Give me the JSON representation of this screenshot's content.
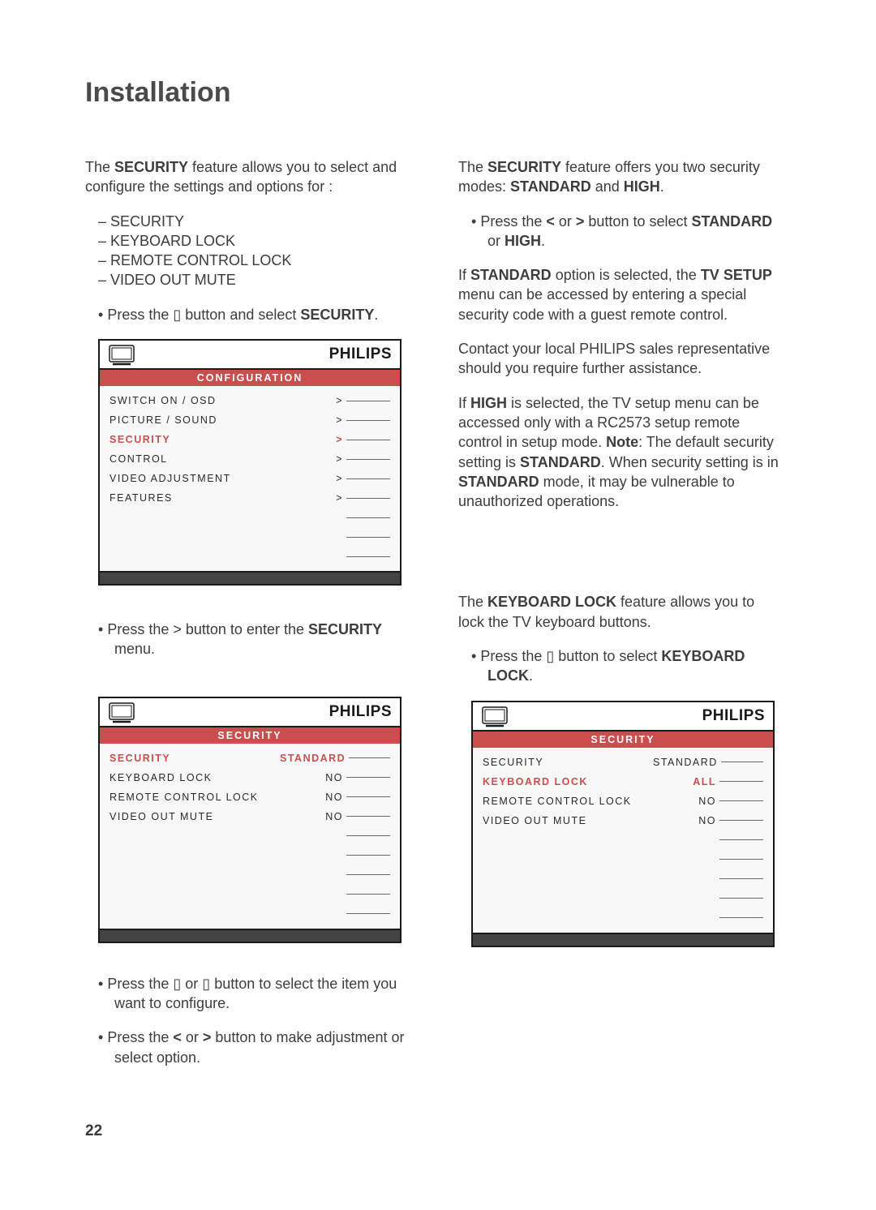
{
  "page_title": "Installation",
  "page_number": "22",
  "brand": "PHILIPS",
  "left": {
    "intro_prefix": "The ",
    "intro_bold": "SECURITY",
    "intro_suffix": " feature allows you to select and configure the settings and options for :",
    "dash_items": [
      "SECURITY",
      "KEYBOARD LOCK",
      "REMOTE CONTROL LOCK",
      "VIDEO OUT MUTE"
    ],
    "press_m_prefix": "Press the  ",
    "press_m_glyph": "▯",
    "press_m_mid": "  button and select ",
    "press_m_bold": "SECURITY",
    "press_m_suffix": ".",
    "press_gt_prefix": "Press the  >  button to enter the ",
    "press_gt_bold": "SECURITY",
    "press_gt_suffix": " menu.",
    "press_ud_prefix": "Press the  ",
    "press_ud_glyph1": "▯",
    "press_ud_mid1": " or ",
    "press_ud_glyph2": "▯",
    "press_ud_suffix": "  button to select the item you want to configure.",
    "press_lr_prefix": "Press the  ",
    "press_lr_b1": "<",
    "press_lr_mid": " or ",
    "press_lr_b2": ">",
    "press_lr_suffix": "  button to make adjustment or select option."
  },
  "right": {
    "modes_prefix": "The ",
    "modes_bold1": "SECURITY",
    "modes_mid": " feature offers you two security modes: ",
    "modes_bold2": "STANDARD",
    "modes_mid2": " and ",
    "modes_bold3": "HIGH",
    "modes_suffix": ".",
    "press_lr_prefix": "Press the  ",
    "press_lr_b1": "<",
    "press_lr_mid": " or ",
    "press_lr_b2": ">",
    "press_lr_mid2": "  button to select ",
    "press_lr_bold": "STANDARD",
    "press_lr_mid3": " or ",
    "press_lr_bold2": "HIGH",
    "press_lr_suffix": ".",
    "std_p_prefix": "If ",
    "std_p_b1": "STANDARD",
    "std_p_mid": " option is selected, the ",
    "std_p_b2": "TV SETUP",
    "std_p_suffix": " menu can be accessed by entering a special security code with a guest remote control.",
    "contact": "Contact your local PHILIPS sales representative should you require further assistance.",
    "high_prefix": "If ",
    "high_b1": "HIGH",
    "high_mid": " is selected, the TV setup menu can be accessed only with a RC2573 setup remote control in setup mode. ",
    "high_note_b": "Note",
    "high_note_mid": ": The default security setting is ",
    "high_b2": "STANDARD",
    "high_mid2": ". When security setting is in ",
    "high_b3": "STANDARD",
    "high_suffix": " mode, it may be vulnerable to unauthorized operations.",
    "kb_prefix": "The ",
    "kb_b": "KEYBOARD LOCK",
    "kb_suffix": " feature allows you to lock the TV keyboard buttons.",
    "kb_press_prefix": "Press the  ",
    "kb_press_glyph": "▯",
    "kb_press_mid": "  button to select ",
    "kb_press_b": "KEYBOARD LOCK",
    "kb_press_suffix": "."
  },
  "osd1": {
    "title": "CONFIGURATION",
    "rows": [
      {
        "label": "SWITCH ON   /   OSD",
        "value": ">",
        "sel": false
      },
      {
        "label": "PICTURE  /  SOUND",
        "value": ">",
        "sel": false
      },
      {
        "label": "SECURITY",
        "value": ">",
        "sel": true
      },
      {
        "label": "CONTROL",
        "value": ">",
        "sel": false
      },
      {
        "label": "VIDEO ADJUSTMENT",
        "value": ">",
        "sel": false
      },
      {
        "label": "FEATURES",
        "value": ">",
        "sel": false
      }
    ],
    "blank_rows": 3
  },
  "osd2": {
    "title": "SECURITY",
    "rows": [
      {
        "label": "SECURITY",
        "value": "STANDARD",
        "sel": true
      },
      {
        "label": "KEYBOARD LOCK",
        "value": "NO",
        "sel": false
      },
      {
        "label": "REMOTE CONTROL LOCK",
        "value": "NO",
        "sel": false
      },
      {
        "label": "VIDEO OUT MUTE",
        "value": "NO",
        "sel": false
      }
    ],
    "blank_rows": 5
  },
  "osd3": {
    "title": "SECURITY",
    "rows": [
      {
        "label": "SECURITY",
        "value": "STANDARD",
        "sel": false
      },
      {
        "label": "KEYBOARD LOCK",
        "value": "ALL",
        "sel": true
      },
      {
        "label": "REMOTE CONTROL LOCK",
        "value": "NO",
        "sel": false
      },
      {
        "label": "VIDEO OUT MUTE",
        "value": "NO",
        "sel": false
      }
    ],
    "blank_rows": 5
  },
  "style": {
    "accent_color": "#c94f4f",
    "text_color": "#3a3a3a",
    "menu_font": "Helvetica",
    "body_fontsize_pt": 13
  }
}
